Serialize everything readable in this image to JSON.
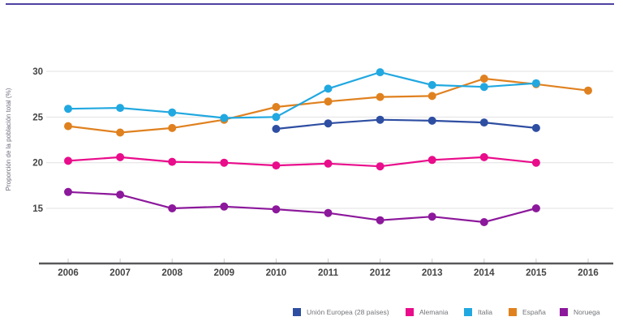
{
  "page": {
    "accent_color": "#4e42a0",
    "background_color": "#ffffff"
  },
  "chart_data": {
    "type": "line",
    "title": "",
    "xlabel": "",
    "ylabel": "Proporción de la población total (%)",
    "x_ticks": [
      "2006",
      "2007",
      "2008",
      "2009",
      "2010",
      "2011",
      "2012",
      "2013",
      "2014",
      "2015",
      "2016"
    ],
    "y_ticks": [
      30,
      25,
      20,
      15
    ],
    "ylim": [
      9,
      32.5
    ],
    "xlim": [
      2006,
      2016
    ],
    "grid": "horizontal",
    "legend_position": "bottom",
    "marker": "circle",
    "axis_color": "#58585a",
    "gridline_color": "#e2e2e2",
    "tick_mark_color": "#c9c9c9",
    "series": [
      {
        "name": "Unión Europea (28 países)",
        "color": "#2e4ea2",
        "x": [
          2010,
          2011,
          2012,
          2013,
          2014,
          2015
        ],
        "values": [
          23.7,
          24.3,
          24.7,
          24.6,
          24.4,
          23.8
        ]
      },
      {
        "name": "Alemania",
        "color": "#e90c8b",
        "x": [
          2006,
          2007,
          2008,
          2009,
          2010,
          2011,
          2012,
          2013,
          2014,
          2015
        ],
        "values": [
          20.2,
          20.6,
          20.1,
          20.0,
          19.7,
          19.9,
          19.6,
          20.3,
          20.6,
          20.0
        ]
      },
      {
        "name": "Italia",
        "color": "#21a8e0",
        "x": [
          2006,
          2007,
          2008,
          2009,
          2010,
          2011,
          2012,
          2013,
          2014,
          2015
        ],
        "values": [
          25.9,
          26.0,
          25.5,
          24.9,
          25.0,
          28.1,
          29.9,
          28.5,
          28.3,
          28.7
        ]
      },
      {
        "name": "España",
        "color": "#e0811f",
        "x": [
          2006,
          2007,
          2008,
          2009,
          2010,
          2011,
          2012,
          2013,
          2014,
          2015,
          2016
        ],
        "values": [
          24.0,
          23.3,
          23.8,
          24.7,
          26.1,
          26.7,
          27.2,
          27.3,
          29.2,
          28.6,
          27.9
        ]
      },
      {
        "name": "Noruega",
        "color": "#8c189b",
        "x": [
          2006,
          2007,
          2008,
          2009,
          2010,
          2011,
          2012,
          2013,
          2014,
          2015
        ],
        "values": [
          16.8,
          16.5,
          15.0,
          15.2,
          14.9,
          14.5,
          13.7,
          14.1,
          13.5,
          15.0
        ]
      }
    ]
  }
}
